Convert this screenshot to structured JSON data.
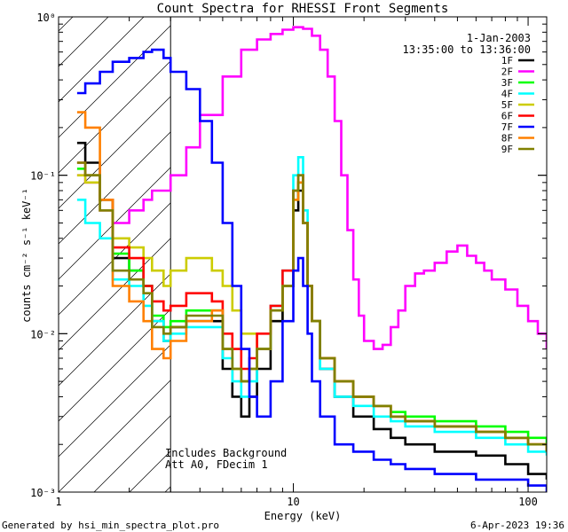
{
  "chart_data": {
    "type": "line",
    "title": "Count Spectra for RHESSI Front Segments",
    "xlabel": "Energy (keV)",
    "ylabel": "counts cm⁻² s⁻¹ keV⁻¹",
    "xscale": "log",
    "yscale": "log",
    "xlim": [
      1,
      120
    ],
    "ylim": [
      0.001,
      1
    ],
    "x_ticks": [
      {
        "value": 1,
        "label": "1"
      },
      {
        "value": 10,
        "label": "10"
      },
      {
        "value": 100,
        "label": "100"
      }
    ],
    "y_ticks": [
      {
        "value": 1,
        "label": "10⁰"
      },
      {
        "value": 0.1,
        "label": "10⁻¹"
      },
      {
        "value": 0.01,
        "label": "10⁻²"
      },
      {
        "value": 0.001,
        "label": "10⁻³"
      }
    ],
    "date": "1-Jan-2003",
    "time_range": "13:35:00 to 13:36:00",
    "attenuator_threshold_keV": 3,
    "annotations": [
      "Includes Background",
      "Att A0, FDecim 1"
    ],
    "series": [
      {
        "name": "1F",
        "color": "#000000",
        "x": [
          1.2,
          1.3,
          1.5,
          1.7,
          2.0,
          2.3,
          2.5,
          2.8,
          3.0,
          3.5,
          4.5,
          5.0,
          5.5,
          6.0,
          6.5,
          7.0,
          8.0,
          9.0,
          10.0,
          10.5,
          11.0,
          11.5,
          12.0,
          13.0,
          15.0,
          18.0,
          22.0,
          26.0,
          30.0,
          40.0,
          60.0,
          80.0,
          100.0,
          120.0
        ],
        "values": [
          0.16,
          0.12,
          0.07,
          0.03,
          0.025,
          0.02,
          0.012,
          0.009,
          0.011,
          0.012,
          0.012,
          0.006,
          0.004,
          0.003,
          0.004,
          0.006,
          0.012,
          0.02,
          0.06,
          0.08,
          0.05,
          0.02,
          0.012,
          0.006,
          0.004,
          0.003,
          0.0025,
          0.0022,
          0.002,
          0.0018,
          0.0017,
          0.0015,
          0.0013,
          0.0012
        ]
      },
      {
        "name": "2F",
        "color": "#ff00ff",
        "x": [
          1.2,
          1.3,
          1.5,
          1.7,
          2.0,
          2.3,
          2.5,
          2.8,
          3.0,
          3.5,
          4.0,
          5.0,
          6.0,
          7.0,
          8.0,
          9.0,
          10.0,
          11.0,
          12.0,
          13.0,
          14.0,
          15.0,
          16.0,
          17.0,
          18.0,
          19.0,
          20.0,
          22.0,
          24.0,
          26.0,
          28.0,
          30.0,
          33.0,
          36.0,
          40.0,
          45.0,
          50.0,
          55.0,
          60.0,
          65.0,
          70.0,
          80.0,
          90.0,
          100.0,
          110.0,
          120.0
        ],
        "values": [
          0.1,
          0.09,
          0.06,
          0.05,
          0.06,
          0.07,
          0.08,
          0.08,
          0.1,
          0.15,
          0.24,
          0.42,
          0.62,
          0.72,
          0.78,
          0.83,
          0.86,
          0.84,
          0.76,
          0.62,
          0.42,
          0.22,
          0.1,
          0.045,
          0.022,
          0.013,
          0.009,
          0.008,
          0.0085,
          0.011,
          0.014,
          0.02,
          0.024,
          0.025,
          0.028,
          0.033,
          0.036,
          0.031,
          0.028,
          0.025,
          0.022,
          0.019,
          0.015,
          0.012,
          0.01,
          0.008
        ]
      },
      {
        "name": "3F",
        "color": "#00ff00",
        "x": [
          1.2,
          1.3,
          1.5,
          1.7,
          2.0,
          2.3,
          2.5,
          2.8,
          3.0,
          3.5,
          4.5,
          5.0,
          5.5,
          6.0,
          6.5,
          7.0,
          8.0,
          9.0,
          10.0,
          10.5,
          11.0,
          11.5,
          12.0,
          13.0,
          15.0,
          18.0,
          22.0,
          26.0,
          30.0,
          40.0,
          60.0,
          80.0,
          100.0,
          120.0
        ],
        "values": [
          0.11,
          0.1,
          0.07,
          0.032,
          0.025,
          0.02,
          0.013,
          0.011,
          0.012,
          0.014,
          0.014,
          0.008,
          0.006,
          0.005,
          0.006,
          0.008,
          0.014,
          0.02,
          0.07,
          0.09,
          0.05,
          0.02,
          0.012,
          0.007,
          0.005,
          0.004,
          0.0035,
          0.0032,
          0.003,
          0.0028,
          0.0026,
          0.0024,
          0.0022,
          0.002
        ]
      },
      {
        "name": "4F",
        "color": "#00ffff",
        "x": [
          1.2,
          1.3,
          1.5,
          1.7,
          2.0,
          2.3,
          2.5,
          2.8,
          3.0,
          3.5,
          4.5,
          5.0,
          5.5,
          6.0,
          6.5,
          7.0,
          8.0,
          9.0,
          10.0,
          10.5,
          11.0,
          11.5,
          12.0,
          13.0,
          15.0,
          18.0,
          22.0,
          26.0,
          30.0,
          40.0,
          60.0,
          80.0,
          100.0,
          120.0
        ],
        "values": [
          0.07,
          0.05,
          0.04,
          0.022,
          0.02,
          0.015,
          0.012,
          0.009,
          0.01,
          0.011,
          0.011,
          0.007,
          0.005,
          0.004,
          0.005,
          0.008,
          0.015,
          0.025,
          0.1,
          0.13,
          0.06,
          0.02,
          0.012,
          0.006,
          0.004,
          0.0035,
          0.003,
          0.0028,
          0.0026,
          0.0024,
          0.0022,
          0.002,
          0.0018,
          0.0017
        ]
      },
      {
        "name": "5F",
        "color": "#cccc00",
        "x": [
          1.2,
          1.3,
          1.5,
          1.7,
          2.0,
          2.3,
          2.5,
          2.8,
          3.0,
          3.5,
          4.0,
          4.5,
          5.0,
          5.5,
          6.0,
          7.0,
          8.0,
          9.0,
          10.0,
          10.5,
          11.0,
          11.5,
          12.0,
          13.0,
          15.0,
          18.0,
          22.0,
          26.0,
          30.0,
          40.0,
          60.0,
          80.0,
          100.0,
          120.0
        ],
        "values": [
          0.1,
          0.09,
          0.06,
          0.04,
          0.035,
          0.03,
          0.025,
          0.02,
          0.025,
          0.03,
          0.03,
          0.025,
          0.02,
          0.014,
          0.01,
          0.008,
          0.012,
          0.02,
          0.07,
          0.09,
          0.05,
          0.02,
          0.012,
          0.007,
          0.005,
          0.004,
          0.0035,
          0.003,
          0.0028,
          0.0026,
          0.0024,
          0.0022,
          0.002,
          0.0018
        ]
      },
      {
        "name": "6F",
        "color": "#ff0000",
        "x": [
          1.2,
          1.3,
          1.5,
          1.7,
          2.0,
          2.3,
          2.5,
          2.8,
          3.0,
          3.5,
          4.5,
          5.0,
          5.5,
          6.0,
          6.5,
          7.0,
          8.0,
          9.0,
          10.0,
          10.5,
          11.0,
          11.5,
          12.0,
          13.0,
          15.0,
          18.0,
          22.0,
          26.0,
          30.0,
          40.0,
          60.0,
          80.0,
          100.0,
          120.0
        ],
        "values": [
          0.12,
          0.1,
          0.07,
          0.035,
          0.03,
          0.02,
          0.016,
          0.014,
          0.015,
          0.018,
          0.016,
          0.01,
          0.008,
          0.006,
          0.007,
          0.01,
          0.015,
          0.025,
          0.08,
          0.1,
          0.05,
          0.02,
          0.012,
          0.007,
          0.005,
          0.004,
          0.0035,
          0.003,
          0.0028,
          0.0026,
          0.0024,
          0.0022,
          0.002,
          0.0018
        ]
      },
      {
        "name": "7F",
        "color": "#0000ff",
        "x": [
          1.2,
          1.3,
          1.5,
          1.7,
          2.0,
          2.3,
          2.5,
          2.8,
          3.0,
          3.5,
          4.0,
          4.5,
          5.0,
          5.5,
          6.0,
          6.5,
          7.0,
          8.0,
          9.0,
          10.0,
          10.5,
          11.0,
          11.5,
          12.0,
          13.0,
          15.0,
          18.0,
          22.0,
          26.0,
          30.0,
          40.0,
          60.0,
          80.0,
          100.0,
          120.0
        ],
        "values": [
          0.33,
          0.38,
          0.45,
          0.52,
          0.55,
          0.6,
          0.62,
          0.55,
          0.45,
          0.35,
          0.22,
          0.12,
          0.05,
          0.02,
          0.008,
          0.004,
          0.003,
          0.005,
          0.012,
          0.025,
          0.03,
          0.02,
          0.01,
          0.005,
          0.003,
          0.002,
          0.0018,
          0.0016,
          0.0015,
          0.0014,
          0.0013,
          0.0012,
          0.0012,
          0.0011,
          0.001
        ]
      },
      {
        "name": "8F",
        "color": "#ff8000",
        "x": [
          1.2,
          1.3,
          1.5,
          1.7,
          2.0,
          2.3,
          2.5,
          2.8,
          3.0,
          3.5,
          4.5,
          5.0,
          5.5,
          6.0,
          6.5,
          7.0,
          8.0,
          9.0,
          10.0,
          10.5,
          11.0,
          11.5,
          12.0,
          13.0,
          15.0,
          18.0,
          22.0,
          26.0,
          30.0,
          40.0,
          60.0,
          80.0,
          100.0,
          120.0
        ],
        "values": [
          0.25,
          0.2,
          0.07,
          0.02,
          0.016,
          0.012,
          0.008,
          0.007,
          0.009,
          0.012,
          0.014,
          0.008,
          0.006,
          0.005,
          0.006,
          0.008,
          0.014,
          0.02,
          0.07,
          0.09,
          0.05,
          0.02,
          0.012,
          0.007,
          0.005,
          0.004,
          0.0035,
          0.003,
          0.0028,
          0.0026,
          0.0024,
          0.0022,
          0.002,
          0.0018
        ]
      },
      {
        "name": "9F",
        "color": "#808000",
        "x": [
          1.2,
          1.3,
          1.5,
          1.7,
          2.0,
          2.3,
          2.5,
          2.8,
          3.0,
          3.5,
          4.5,
          5.0,
          5.5,
          6.0,
          6.5,
          7.0,
          8.0,
          9.0,
          10.0,
          10.5,
          11.0,
          11.5,
          12.0,
          13.0,
          15.0,
          18.0,
          22.0,
          26.0,
          30.0,
          40.0,
          60.0,
          80.0,
          100.0,
          120.0
        ],
        "values": [
          0.12,
          0.1,
          0.06,
          0.025,
          0.022,
          0.018,
          0.011,
          0.01,
          0.011,
          0.013,
          0.013,
          0.008,
          0.006,
          0.005,
          0.006,
          0.008,
          0.014,
          0.02,
          0.08,
          0.1,
          0.05,
          0.02,
          0.012,
          0.007,
          0.005,
          0.004,
          0.0035,
          0.003,
          0.0028,
          0.0026,
          0.0024,
          0.0022,
          0.002,
          0.0018
        ]
      }
    ]
  },
  "footer": {
    "generator": "Generated by hsi_min_spectra_plot.pro",
    "timestamp": "6-Apr-2023 19:36"
  }
}
